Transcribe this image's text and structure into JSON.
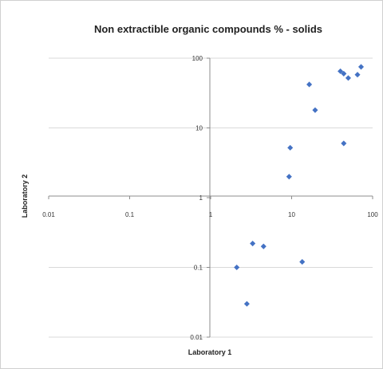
{
  "chart_data": {
    "type": "scatter",
    "title": "Non extractible organic compounds % - solids",
    "xlabel": "Laboratory 1",
    "ylabel": "Laboratory 2",
    "x_scale": "log",
    "y_scale": "log",
    "xlim": [
      0.01,
      100
    ],
    "ylim": [
      0.01,
      100
    ],
    "x_ticks": [
      "0.01",
      "0.1",
      "1",
      "10",
      "100"
    ],
    "y_ticks": [
      "0.01",
      "0.1",
      "1",
      "10",
      "100"
    ],
    "grid": "horizontal",
    "legend": "none",
    "marker_color": "#4472C4",
    "points": [
      {
        "x": 2.1,
        "y": 0.1
      },
      {
        "x": 2.8,
        "y": 0.03
      },
      {
        "x": 3.3,
        "y": 0.22
      },
      {
        "x": 4.5,
        "y": 0.2
      },
      {
        "x": 9.3,
        "y": 2
      },
      {
        "x": 9.6,
        "y": 5.2
      },
      {
        "x": 13.5,
        "y": 0.12
      },
      {
        "x": 16.5,
        "y": 42
      },
      {
        "x": 19.5,
        "y": 18
      },
      {
        "x": 40,
        "y": 65
      },
      {
        "x": 44,
        "y": 60
      },
      {
        "x": 44,
        "y": 6
      },
      {
        "x": 50,
        "y": 52
      },
      {
        "x": 65,
        "y": 58
      },
      {
        "x": 72,
        "y": 75
      }
    ]
  }
}
